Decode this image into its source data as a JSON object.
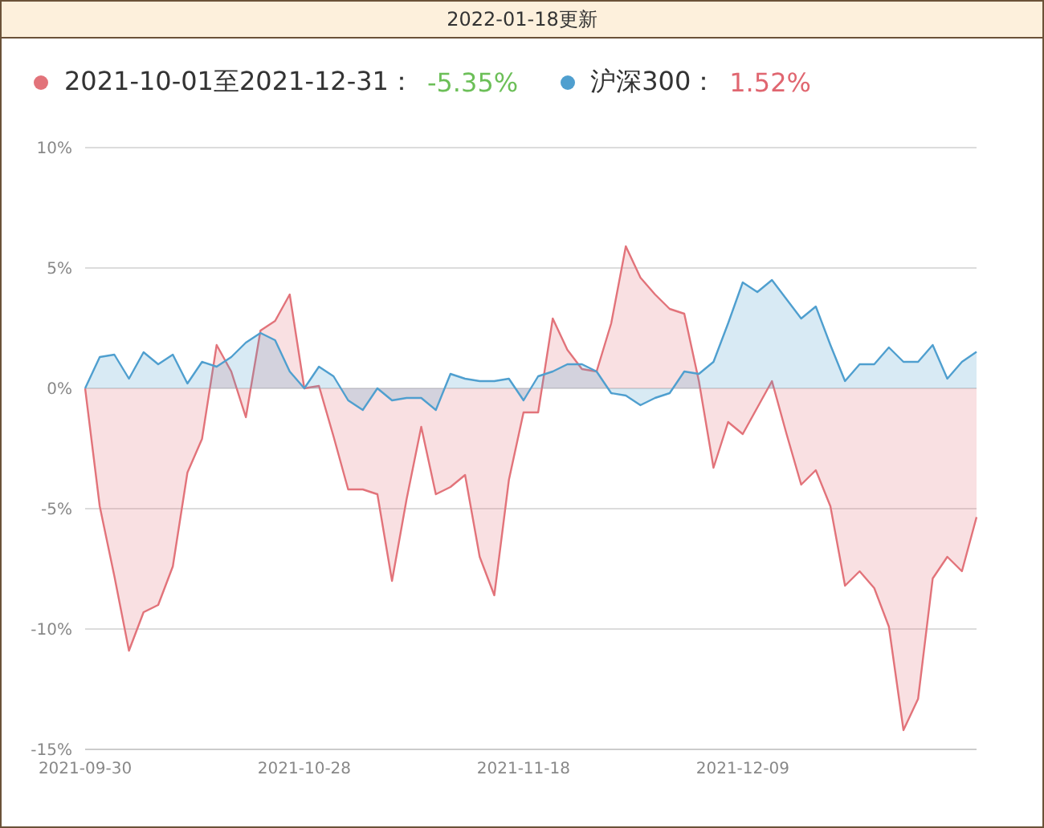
{
  "chart_data": {
    "type": "area",
    "title": "2022-01-18更新",
    "categories": [
      "2021-09-30",
      null,
      null,
      null,
      null,
      null,
      null,
      null,
      null,
      null,
      null,
      null,
      null,
      null,
      null,
      "2021-10-28",
      null,
      null,
      null,
      null,
      null,
      null,
      null,
      null,
      null,
      null,
      null,
      null,
      null,
      null,
      "2021-11-18",
      null,
      null,
      null,
      null,
      null,
      null,
      null,
      null,
      null,
      null,
      null,
      null,
      null,
      null,
      "2021-12-09",
      null,
      null,
      null,
      null,
      null,
      null,
      null,
      null,
      null,
      null,
      null,
      null,
      null,
      null,
      null,
      null
    ],
    "series": [
      {
        "name": "2021-10-01至2021-12-31：",
        "color": "#e2737a",
        "values": [
          0,
          -4.9,
          -7.8,
          -10.9,
          -9.3,
          -9.0,
          -7.4,
          -3.5,
          -2.1,
          1.8,
          0.7,
          -1.2,
          2.4,
          2.8,
          3.9,
          0.0,
          0.1,
          -2.0,
          -4.2,
          -4.2,
          -4.4,
          -8.0,
          -4.6,
          -1.6,
          -4.4,
          -4.1,
          -3.6,
          -7.0,
          -8.6,
          -3.8,
          -1.0,
          -1.0,
          2.9,
          1.6,
          0.8,
          0.7,
          2.7,
          5.9,
          4.6,
          3.9,
          3.3,
          3.1,
          0.3,
          -3.3,
          -1.4,
          -1.9,
          -0.8,
          0.3,
          -1.9,
          -4.0,
          -3.4,
          -4.9,
          -8.2,
          -7.6,
          -8.3,
          -9.9,
          -14.2,
          -12.9,
          -7.9,
          -7.0,
          -7.6,
          -5.35
        ]
      },
      {
        "name": "沪深300：",
        "color": "#4f9fcf",
        "values": [
          0,
          1.3,
          1.4,
          0.4,
          1.5,
          1.0,
          1.4,
          0.2,
          1.1,
          0.9,
          1.3,
          1.9,
          2.3,
          2.0,
          0.7,
          0.0,
          0.9,
          0.5,
          -0.5,
          -0.9,
          0.0,
          -0.5,
          -0.4,
          -0.4,
          -0.9,
          0.6,
          0.4,
          0.3,
          0.3,
          0.4,
          -0.5,
          0.5,
          0.7,
          1.0,
          1.0,
          0.7,
          -0.2,
          -0.3,
          -0.7,
          -0.4,
          -0.2,
          0.7,
          0.6,
          1.1,
          2.7,
          4.4,
          4.0,
          4.5,
          3.7,
          2.9,
          3.4,
          1.8,
          0.3,
          1.0,
          1.0,
          1.7,
          1.1,
          1.1,
          1.8,
          0.4,
          1.1,
          1.52
        ]
      }
    ],
    "annotations": [
      "-5.35%",
      "1.52%"
    ],
    "ylim": [
      -15,
      10
    ],
    "yticks": [
      {
        "value": 10,
        "label": "10%"
      },
      {
        "value": 5,
        "label": "5%"
      },
      {
        "value": 0,
        "label": "0%"
      },
      {
        "value": -5,
        "label": "-5%"
      },
      {
        "value": -10,
        "label": "-10%"
      },
      {
        "value": -15,
        "label": "-15%"
      }
    ],
    "grid": "y",
    "legend": "top left",
    "marker": "none",
    "line_style": "solid"
  }
}
